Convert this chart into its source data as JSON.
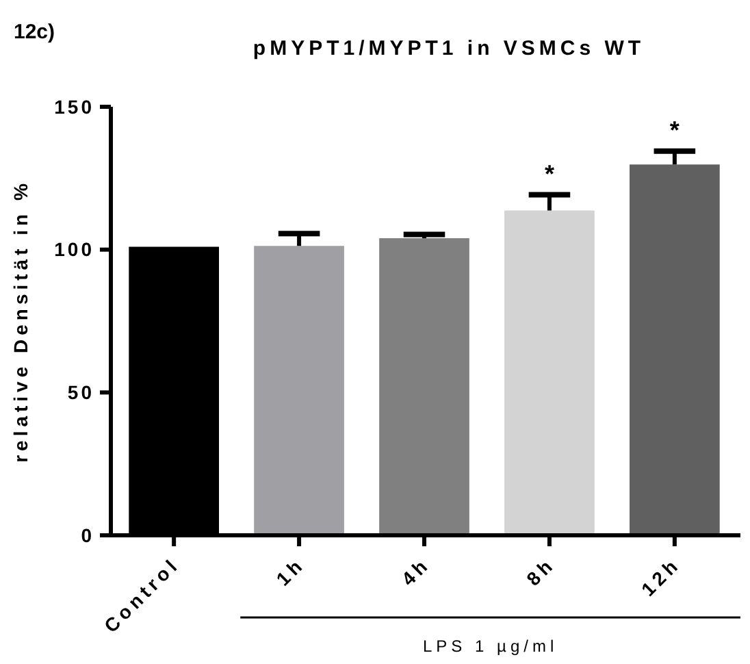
{
  "chart_data": {
    "type": "bar",
    "title": "pMYPT1/MYPT1 in VSMCs WT",
    "ylabel": "relative Densität in %",
    "categories": [
      "Control",
      "1h",
      "4h",
      "8h",
      "12h"
    ],
    "values": [
      101,
      101.3,
      104,
      113.7,
      129.8
    ],
    "colors": [
      "#000000",
      "#a09fa4",
      "#808080",
      "#d3d3d3",
      "#606060"
    ],
    "errors": [
      null,
      4.3,
      1.3,
      5.5,
      4.7
    ],
    "ylim": [
      0,
      150
    ],
    "yticks": [
      0,
      50,
      100,
      150
    ],
    "grid": false,
    "annotations": [
      "12c)",
      "*",
      "*",
      "LPS 1 µg/ml"
    ]
  }
}
